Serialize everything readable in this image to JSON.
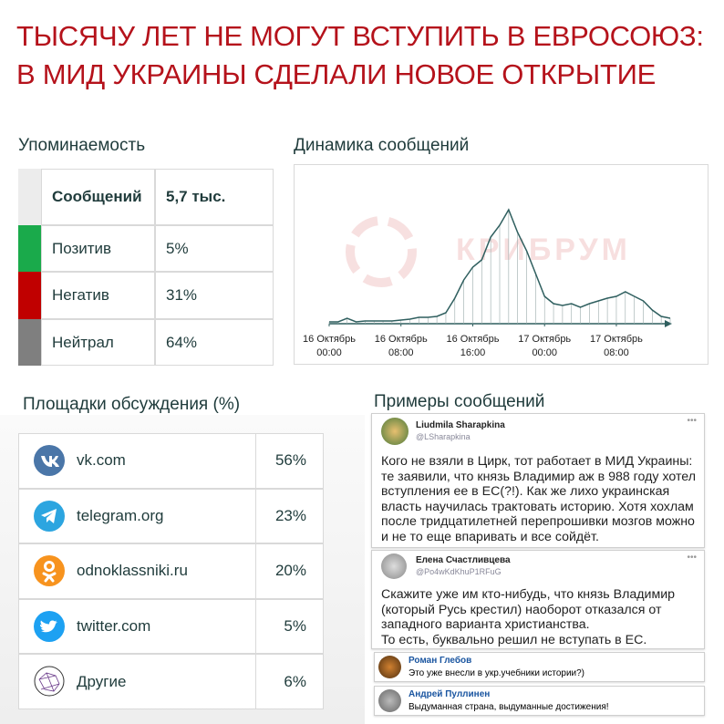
{
  "header": {
    "title_lines": [
      "ТЫСЯЧУ ЛЕТ НЕ МОГУТ ВСТУПИТЬ В ЕВРОСОЮЗ:",
      "В МИД УКРАИНЫ СДЕЛАЛИ НОВОЕ ОТКРЫТИЕ"
    ]
  },
  "mentions": {
    "title": "Упоминаемость",
    "rows": [
      {
        "label": "Сообщений",
        "value": "5,7 тыс.",
        "color": "#ececec"
      },
      {
        "label": "Позитив",
        "value": "5%",
        "color": "#1aaa4b"
      },
      {
        "label": "Негатив",
        "value": "31%",
        "color": "#c00000"
      },
      {
        "label": "Нейтрал",
        "value": "64%",
        "color": "#7f7f7f"
      }
    ]
  },
  "chart_data": {
    "type": "line",
    "title": "Динамика сообщений",
    "watermark": "КРИБРУМ",
    "color": "#2f5f5f",
    "values": [
      2,
      2,
      6,
      2,
      3,
      3,
      3,
      3,
      4,
      5,
      7,
      7,
      8,
      12,
      28,
      48,
      62,
      70,
      95,
      108,
      125,
      100,
      80,
      55,
      30,
      22,
      20,
      22,
      18,
      22,
      25,
      28,
      30,
      35,
      30,
      25,
      15,
      8,
      6
    ],
    "xlim": [
      0,
      38
    ],
    "ylim": [
      0,
      140
    ],
    "xticks": [
      {
        "value": 0,
        "label": "16 Октябрь 00:00"
      },
      {
        "value": 8,
        "label": "16 Октябрь 08:00"
      },
      {
        "value": 16,
        "label": "16 Октябрь 16:00"
      },
      {
        "value": 24,
        "label": "17 Октябрь 00:00"
      },
      {
        "value": 32,
        "label": "17 Октябрь 08:00"
      }
    ]
  },
  "platforms": {
    "title": "Площадки обсуждения (%)",
    "rows": [
      {
        "name": "vk.com",
        "value": "56%"
      },
      {
        "name": "telegram.org",
        "value": "23%"
      },
      {
        "name": "odnoklassniki.ru",
        "value": "20%"
      },
      {
        "name": "twitter.com",
        "value": "5%"
      },
      {
        "name": "Другие",
        "value": "6%"
      }
    ]
  },
  "examples": {
    "title": "Примеры сообщений",
    "posts": [
      {
        "author": "Liudmila Sharapkina",
        "handle": "@LSharapkina",
        "text": "Кого не взяли в Цирк, тот работает в МИД Украины: те заявили, что князь Владимир аж в 988 году хотел вступления ее в ЕС(?!). Как же лихо украинская власть научилась трактовать историю. Хотя хохлам после тридцатилетней перепрошивки  мозгов можно и не то еще впаривать и все сойдёт."
      },
      {
        "author": "Елена Счастливцева",
        "handle": "@Po4wKdKhuP1RFuG",
        "text": "Скажите уже им кто-нибудь, что князь Владимир (который Русь крестил) наоборот отказался от западного варианта христианства.\nТо есть, буквально решил не вступать в ЕС."
      },
      {
        "author": "Роман Глебов",
        "text": "Это уже внесли в укр.учебники истории?)"
      },
      {
        "author": "Андрей Пуллинен",
        "text": "Выдуманная страна, выдуманные достижения!"
      }
    ]
  }
}
